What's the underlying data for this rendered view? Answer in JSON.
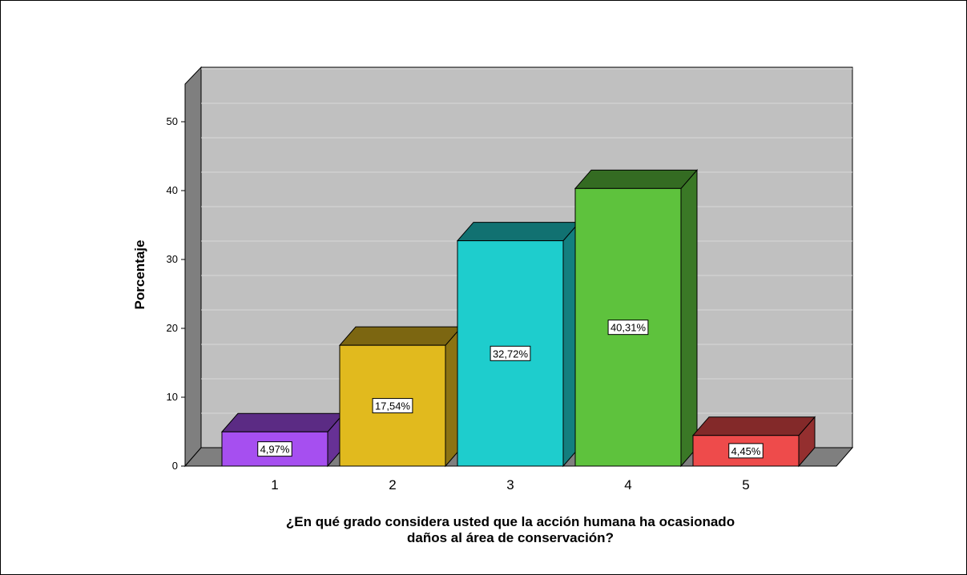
{
  "chart_data": {
    "type": "bar",
    "categories": [
      "1",
      "2",
      "3",
      "4",
      "5"
    ],
    "values": [
      4.97,
      17.54,
      32.72,
      40.31,
      4.45
    ],
    "data_labels": [
      "4,97%",
      "17,54%",
      "32,72%",
      "40,31%",
      "4,45%"
    ],
    "colors": [
      "#a64ff0",
      "#e1ba1e",
      "#1ecdcd",
      "#5ec23d",
      "#ee4b4b"
    ],
    "ylabel": "Porcentaje",
    "xlabel_lines": [
      "¿En qué grado considera usted que la acción humana ha ocasionado",
      "daños al área de conservación?"
    ],
    "yticks": [
      0,
      10,
      20,
      30,
      40,
      50
    ],
    "ylim": [
      0,
      56
    ],
    "grid": true,
    "style": "3d"
  }
}
